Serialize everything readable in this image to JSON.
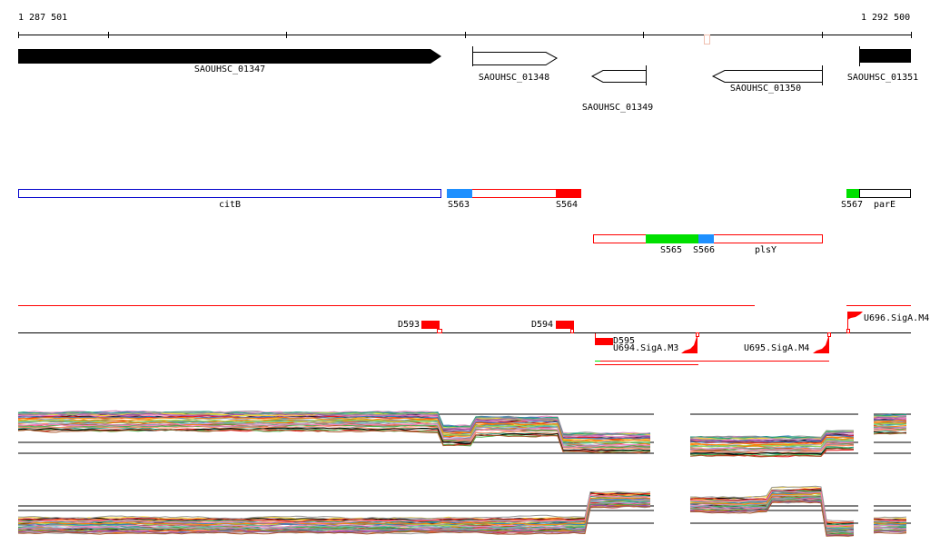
{
  "ruler": {
    "start": "1 287 501",
    "end": "1 292 500"
  },
  "genes": [
    {
      "name": "SAOUHSC_01347",
      "strand": "+",
      "filled": true
    },
    {
      "name": "SAOUHSC_01348",
      "strand": "+",
      "filled": false
    },
    {
      "name": "SAOUHSC_01349",
      "strand": "-",
      "filled": false
    },
    {
      "name": "SAOUHSC_01350",
      "strand": "-",
      "filled": false
    },
    {
      "name": "SAOUHSC_01351",
      "strand": "+",
      "filled": true
    }
  ],
  "segments": {
    "row1": {
      "citB": "citB",
      "s563": "S563",
      "s564": "S564",
      "s567": "S567",
      "parE": "parE"
    },
    "row2": {
      "s565": "S565",
      "s566": "S566",
      "plsY": "plsY"
    }
  },
  "features": {
    "d593": "D593",
    "d594": "D594",
    "d595": "D595",
    "u694": "U694.SigA.M3",
    "u695": "U695.SigA.M4",
    "u696": "U696.SigA.M4"
  },
  "colors": {
    "red": "#ff0000",
    "blue": "#1e90ff",
    "green": "#00e000",
    "citB_border": "#0000cc"
  }
}
